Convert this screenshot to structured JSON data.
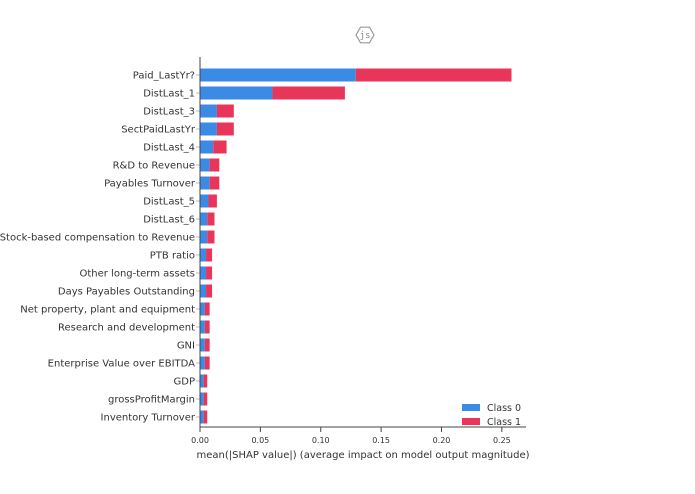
{
  "badge": {
    "label": "js",
    "icon": "hexagon-js-badge-icon"
  },
  "chart_data": {
    "type": "bar",
    "orientation": "horizontal",
    "stacked": true,
    "xlabel": "mean(|SHAP value|) (average impact on model output magnitude)",
    "xlim": [
      0,
      0.27
    ],
    "xticks": [
      0.0,
      0.05,
      0.1,
      0.15,
      0.2,
      0.25
    ],
    "xtick_labels": [
      "0.00",
      "0.05",
      "0.10",
      "0.15",
      "0.20",
      "0.25"
    ],
    "legend_position": "bottom-right",
    "categories": [
      "Paid_LastYr?",
      "DistLast_1",
      "DistLast_3",
      "SectPaidLastYr",
      "DistLast_4",
      "R&D to Revenue",
      "Payables Turnover",
      "DistLast_5",
      "DistLast_6",
      "Stock-based compensation to Revenue",
      "PTB ratio",
      "Other long-term assets",
      "Days Payables Outstanding",
      "Net property, plant and equipment",
      "Research and development",
      "GNI",
      "Enterprise Value over EBITDA",
      "GDP",
      "grossProfitMargin",
      "Inventory Turnover"
    ],
    "series": [
      {
        "name": "Class 0",
        "color": "#3a8ae6",
        "values": [
          0.129,
          0.06,
          0.014,
          0.014,
          0.011,
          0.008,
          0.008,
          0.007,
          0.006,
          0.006,
          0.005,
          0.005,
          0.005,
          0.004,
          0.004,
          0.004,
          0.004,
          0.003,
          0.003,
          0.003
        ]
      },
      {
        "name": "Class 1",
        "color": "#e8355a",
        "values": [
          0.129,
          0.06,
          0.014,
          0.014,
          0.011,
          0.008,
          0.008,
          0.007,
          0.006,
          0.006,
          0.005,
          0.005,
          0.005,
          0.004,
          0.004,
          0.004,
          0.004,
          0.003,
          0.003,
          0.003
        ]
      }
    ]
  }
}
